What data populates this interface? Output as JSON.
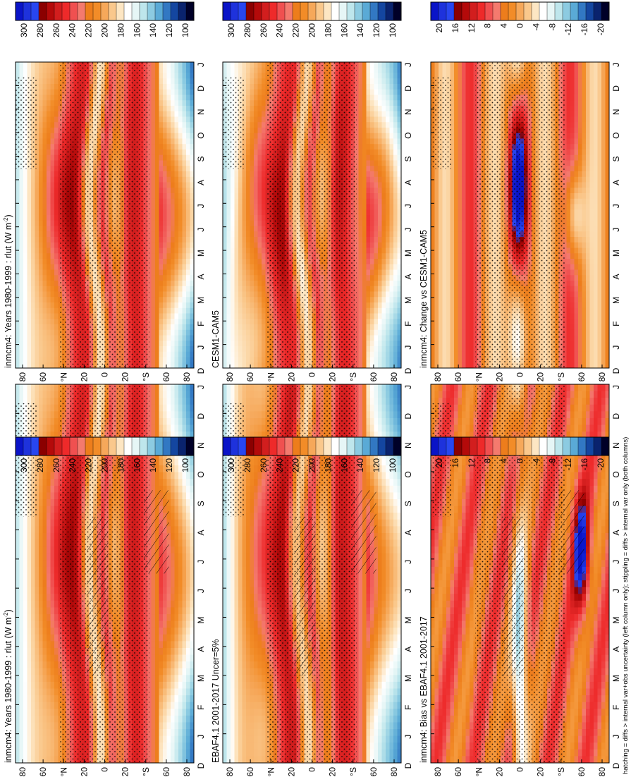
{
  "figure": {
    "caption": "hatching = diffs > internal var+obs uncertainty (left column only); stippling = diffs > internal var only (both columns)"
  },
  "chart_data": [
    {
      "type": "heatmap",
      "id": "p1",
      "title": "inmcm4: Years 1980-1999 : rlut (W m",
      "title_sup": "-2",
      "title_end": ")",
      "x_ticks": [
        "D",
        "J",
        "F",
        "M",
        "A",
        "M",
        "J",
        "J",
        "A",
        "S",
        "O",
        "N",
        "D",
        "J"
      ],
      "y_ticks": [
        "80",
        "60",
        "°N",
        "20",
        "0",
        "20",
        "°S",
        "60",
        "80"
      ],
      "colorbar_ticks": [
        "300",
        "280",
        "260",
        "240",
        "220",
        "200",
        "180",
        "160",
        "140",
        "120",
        "100"
      ],
      "colorbar_colors": [
        "#0a14c8",
        "#1e32dc",
        "#2846f0",
        "#8b0000",
        "#b40a0a",
        "#d21e1e",
        "#ee2a2a",
        "#f05050",
        "#f47a6e",
        "#ed7d1c",
        "#f28c28",
        "#f6a85a",
        "#fac88c",
        "#fde6c3",
        "#ffffff",
        "#e6f6f6",
        "#bee6ec",
        "#8ccbe1",
        "#5aaad6",
        "#3278c3",
        "#1446a0",
        "#0a236e",
        "#000028"
      ],
      "hatched": true,
      "stippled": true
    },
    {
      "type": "heatmap",
      "id": "p2",
      "title": "inmcm4: Years 1980-1999 : rlut (W m",
      "title_sup": "-2",
      "title_end": ")",
      "x_ticks": [
        "D",
        "J",
        "F",
        "M",
        "A",
        "M",
        "J",
        "J",
        "A",
        "S",
        "O",
        "N",
        "D",
        "J"
      ],
      "y_ticks": [
        "80",
        "60",
        "°N",
        "20",
        "0",
        "20",
        "°S",
        "60",
        "80"
      ],
      "colorbar_ticks": [
        "300",
        "280",
        "260",
        "240",
        "220",
        "200",
        "180",
        "160",
        "140",
        "120",
        "100"
      ],
      "hatched": false,
      "stippled": true
    },
    {
      "type": "heatmap",
      "id": "p3",
      "title": "EBAF4.1 2001-2017 Uncer=5%",
      "x_ticks": [
        "D",
        "J",
        "F",
        "M",
        "A",
        "M",
        "J",
        "J",
        "A",
        "S",
        "O",
        "N",
        "D",
        "J"
      ],
      "y_ticks": [
        "80",
        "60",
        "°N",
        "20",
        "0",
        "20",
        "°S",
        "60",
        "80"
      ],
      "colorbar_ticks": [
        "300",
        "280",
        "260",
        "240",
        "220",
        "200",
        "180",
        "160",
        "140",
        "120",
        "100"
      ],
      "hatched": true,
      "stippled": true
    },
    {
      "type": "heatmap",
      "id": "p4",
      "title": "CESM1-CAM5",
      "x_ticks": [
        "D",
        "J",
        "F",
        "M",
        "A",
        "M",
        "J",
        "J",
        "A",
        "S",
        "O",
        "N",
        "D",
        "J"
      ],
      "y_ticks": [
        "80",
        "60",
        "°N",
        "20",
        "0",
        "20",
        "°S",
        "60",
        "80"
      ],
      "colorbar_ticks": [
        "300",
        "280",
        "260",
        "240",
        "220",
        "200",
        "180",
        "160",
        "140",
        "120",
        "100"
      ],
      "hatched": false,
      "stippled": true
    },
    {
      "type": "heatmap",
      "id": "p5",
      "title": "inmcm4: Bias vs EBAF4.1 2001-2017",
      "x_ticks": [
        "D",
        "J",
        "F",
        "M",
        "A",
        "M",
        "J",
        "J",
        "A",
        "S",
        "O",
        "N",
        "D",
        "J"
      ],
      "y_ticks": [
        "80",
        "60",
        "°N",
        "20",
        "0",
        "20",
        "°S",
        "60",
        "80"
      ],
      "colorbar_ticks": [
        "20",
        "16",
        "12",
        "8",
        "4",
        "0",
        "-4",
        "-8",
        "-12",
        "-16",
        "-20"
      ],
      "hatched": true,
      "stippled": true
    },
    {
      "type": "heatmap",
      "id": "p6",
      "title": "inmcm4: Change vs CESM1-CAM5",
      "x_ticks": [
        "D",
        "J",
        "F",
        "M",
        "A",
        "M",
        "J",
        "J",
        "A",
        "S",
        "O",
        "N",
        "D",
        "J"
      ],
      "y_ticks": [
        "80",
        "60",
        "°N",
        "20",
        "0",
        "20",
        "°S",
        "60",
        "80"
      ],
      "colorbar_ticks": [
        "20",
        "16",
        "12",
        "8",
        "4",
        "0",
        "-4",
        "-8",
        "-12",
        "-16",
        "-20"
      ],
      "hatched": false,
      "stippled": true
    }
  ]
}
